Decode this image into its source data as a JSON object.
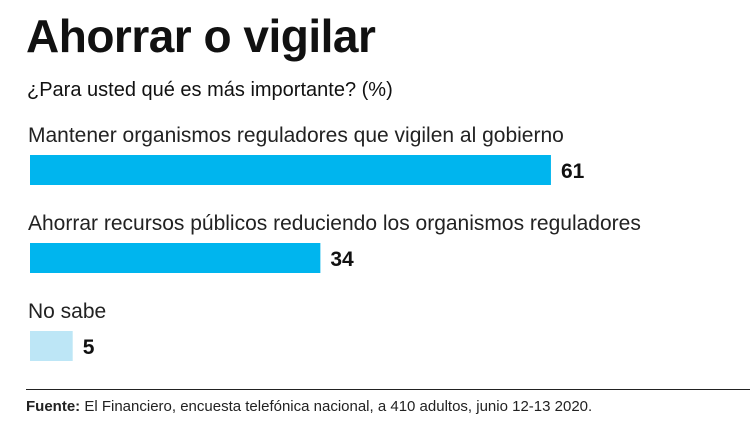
{
  "title": "Ahorrar o vigilar",
  "subtitle": "¿Para usted qué es más importante? (%)",
  "source": {
    "label": "Fuente:",
    "text": " El Financiero, encuesta telefónica nacional, a 410 adultos, junio 12-13 2020."
  },
  "colors": {
    "bar_primary": "#00B5EE",
    "bar_light": "#BDE6F6"
  },
  "chart_data": {
    "type": "bar",
    "orientation": "horizontal",
    "categories": [
      "Mantener organismos reguladores que vigilen al gobierno",
      "Ahorrar recursos públicos reduciendo los organismos reguladores",
      "No sabe"
    ],
    "values": [
      61,
      34,
      5
    ],
    "value_labels": [
      "61",
      "34",
      "5"
    ],
    "bar_colors": [
      "#00B5EE",
      "#00B5EE",
      "#BDE6F6"
    ],
    "title": "Ahorrar o vigilar",
    "subtitle": "¿Para usted qué es más importante? (%)",
    "xlabel": "",
    "ylabel": "",
    "grid": false
  }
}
